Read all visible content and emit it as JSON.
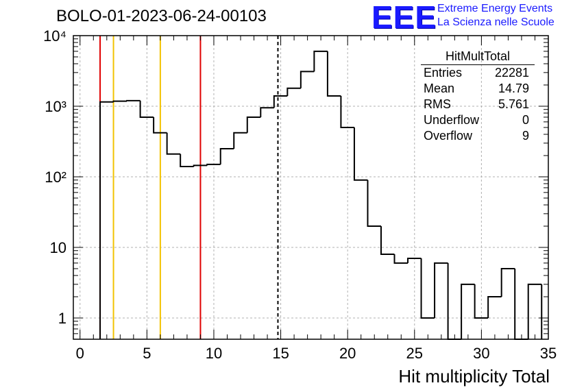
{
  "title": "BOLO-01-2023-06-24-00103",
  "logo": {
    "mark": "EEE",
    "line1": "Extreme Energy Events",
    "line2": "La Scienza nelle Scuole",
    "color": "#1a1aff"
  },
  "stats": {
    "title": "HitMultTotal",
    "rows": [
      {
        "label": "Entries",
        "value": "22281"
      },
      {
        "label": "Mean",
        "value": "14.79"
      },
      {
        "label": "RMS",
        "value": "5.761"
      },
      {
        "label": "Underflow",
        "value": "0"
      },
      {
        "label": "Overflow",
        "value": "9"
      }
    ]
  },
  "chart_data": {
    "type": "histogram",
    "title": "BOLO-01-2023-06-24-00103",
    "xlabel": "Hit multiplicity Total",
    "ylabel": "",
    "xlim": [
      -0.5,
      35
    ],
    "ylim": [
      0.5,
      10000
    ],
    "yscale": "log",
    "grid": true,
    "bin_width": 1,
    "bins": [
      {
        "x": 2,
        "y": 1150
      },
      {
        "x": 3,
        "y": 1180
      },
      {
        "x": 4,
        "y": 1200
      },
      {
        "x": 5,
        "y": 700
      },
      {
        "x": 6,
        "y": 420
      },
      {
        "x": 7,
        "y": 210
      },
      {
        "x": 8,
        "y": 140
      },
      {
        "x": 9,
        "y": 145
      },
      {
        "x": 10,
        "y": 150
      },
      {
        "x": 11,
        "y": 250
      },
      {
        "x": 12,
        "y": 420
      },
      {
        "x": 13,
        "y": 700
      },
      {
        "x": 14,
        "y": 950
      },
      {
        "x": 15,
        "y": 1400
      },
      {
        "x": 16,
        "y": 1800
      },
      {
        "x": 17,
        "y": 3100
      },
      {
        "x": 18,
        "y": 6000
      },
      {
        "x": 19,
        "y": 1400
      },
      {
        "x": 20,
        "y": 500
      },
      {
        "x": 21,
        "y": 90
      },
      {
        "x": 22,
        "y": 20
      },
      {
        "x": 23,
        "y": 8
      },
      {
        "x": 24,
        "y": 6
      },
      {
        "x": 25,
        "y": 7
      },
      {
        "x": 26,
        "y": 1
      },
      {
        "x": 27,
        "y": 6
      },
      {
        "x": 28,
        "y": 0
      },
      {
        "x": 29,
        "y": 3
      },
      {
        "x": 30,
        "y": 1
      },
      {
        "x": 31,
        "y": 2
      },
      {
        "x": 32,
        "y": 5
      },
      {
        "x": 33,
        "y": 0
      },
      {
        "x": 34,
        "y": 3
      }
    ],
    "vertical_lines": [
      {
        "x": 1.5,
        "color": "#e00000",
        "style": "solid"
      },
      {
        "x": 2.5,
        "color": "#f2c200",
        "style": "solid"
      },
      {
        "x": 6,
        "color": "#f2c200",
        "style": "solid"
      },
      {
        "x": 9,
        "color": "#e00000",
        "style": "solid"
      },
      {
        "x": 14.79,
        "color": "#000000",
        "style": "dashed"
      }
    ],
    "x_ticks": [
      "0",
      "5",
      "10",
      "15",
      "20",
      "25",
      "30",
      "35"
    ],
    "y_ticks": [
      "1",
      "10",
      "10²",
      "10³",
      "10⁴"
    ]
  }
}
